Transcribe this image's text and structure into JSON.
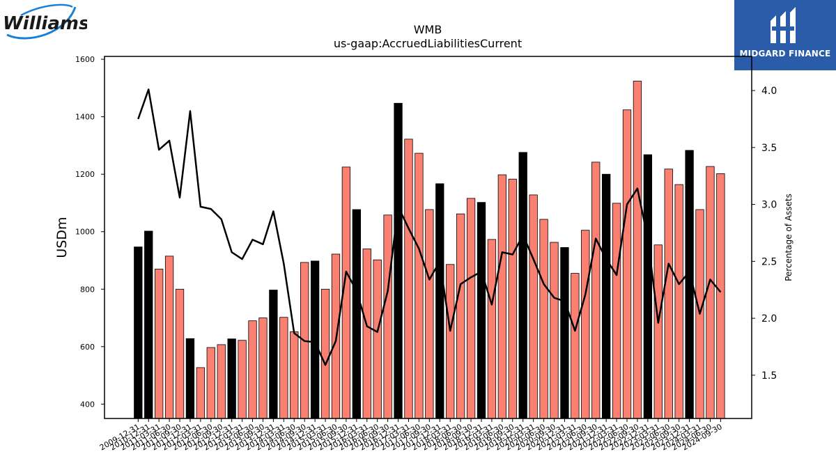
{
  "brand": {
    "left_logo_text": "Williams",
    "right_logo_text": "MIDGARD FINANCE"
  },
  "chart_data": {
    "type": "bar",
    "title": "WMB",
    "subtitle": "us-gaap:AccruedLiabilitiesCurrent",
    "ylabel": "USDm",
    "y2label": "Percentage of Assets",
    "ylim": [
      350,
      1610
    ],
    "y2lim": [
      1.12,
      4.3
    ],
    "yticks": [
      400,
      600,
      800,
      1000,
      1200,
      1400,
      1600
    ],
    "y2ticks": [
      1.5,
      2.0,
      2.5,
      3.0,
      3.5,
      4.0
    ],
    "colors": {
      "annual": "#000000",
      "quarterly": "#fa8072",
      "line": "#000000"
    },
    "categories": [
      "2009-12-31",
      "2010-12-31",
      "2011-03-31",
      "2011-06-30",
      "2011-09-30",
      "2011-12-31",
      "2012-03-31",
      "2012-06-30",
      "2012-09-30",
      "2012-12-31",
      "2013-03-31",
      "2013-06-30",
      "2013-09-30",
      "2013-12-31",
      "2014-03-31",
      "2014-06-30",
      "2014-09-30",
      "2014-12-31",
      "2015-03-31",
      "2015-06-30",
      "2015-09-30",
      "2015-12-31",
      "2016-03-31",
      "2016-06-30",
      "2016-09-30",
      "2016-12-31",
      "2017-03-31",
      "2017-06-30",
      "2017-09-30",
      "2017-12-31",
      "2018-03-31",
      "2018-06-30",
      "2018-09-30",
      "2018-12-31",
      "2019-03-31",
      "2019-06-30",
      "2019-09-30",
      "2019-12-31",
      "2020-03-31",
      "2020-06-30",
      "2020-09-30",
      "2020-12-31",
      "2021-03-31",
      "2021-06-30",
      "2021-09-30",
      "2021-12-31",
      "2022-03-31",
      "2022-06-30",
      "2022-09-30",
      "2022-12-31",
      "2023-03-31",
      "2023-06-30",
      "2023-09-30",
      "2023-12-31",
      "2024-03-31",
      "2024-06-30",
      "2024-09-30"
    ],
    "series": [
      {
        "kind": "bar",
        "values": [
          947,
          1002,
          870,
          915,
          800,
          628,
          527,
          597,
          607,
          627,
          622,
          690,
          700,
          797,
          702,
          652,
          893,
          898,
          800,
          922,
          1225,
          1077,
          940,
          902,
          1058,
          1447,
          1322,
          1273,
          1077,
          1167,
          886,
          1062,
          1116,
          1102,
          973,
          1198,
          1183,
          1276,
          1128,
          1043,
          963,
          945,
          855,
          1005,
          1242,
          1200,
          1099,
          1424,
          1524,
          1268,
          954,
          1218,
          1164,
          1283,
          1077,
          1227,
          1202
        ],
        "annual": [
          true,
          true,
          false,
          false,
          false,
          true,
          false,
          false,
          false,
          true,
          false,
          false,
          false,
          true,
          false,
          false,
          false,
          true,
          false,
          false,
          false,
          true,
          false,
          false,
          false,
          true,
          false,
          false,
          false,
          true,
          false,
          false,
          false,
          true,
          false,
          false,
          false,
          true,
          false,
          false,
          false,
          true,
          false,
          false,
          false,
          true,
          false,
          false,
          false,
          true,
          false,
          false,
          false,
          true,
          false,
          false,
          false
        ]
      },
      {
        "kind": "line",
        "axis": "right",
        "values": [
          3.75,
          4.01,
          3.48,
          3.56,
          3.06,
          3.82,
          2.98,
          2.96,
          2.87,
          2.58,
          2.52,
          2.69,
          2.65,
          2.94,
          2.48,
          1.87,
          1.8,
          1.79,
          1.59,
          1.8,
          2.41,
          2.24,
          1.93,
          1.88,
          2.24,
          2.98,
          2.79,
          2.61,
          2.34,
          2.5,
          1.89,
          2.3,
          2.36,
          2.41,
          2.12,
          2.58,
          2.56,
          2.73,
          2.52,
          2.3,
          2.18,
          2.15,
          1.89,
          2.21,
          2.7,
          2.52,
          2.38,
          3.0,
          3.14,
          2.7,
          1.96,
          2.48,
          2.3,
          2.41,
          2.04,
          2.34,
          2.23
        ]
      }
    ]
  }
}
